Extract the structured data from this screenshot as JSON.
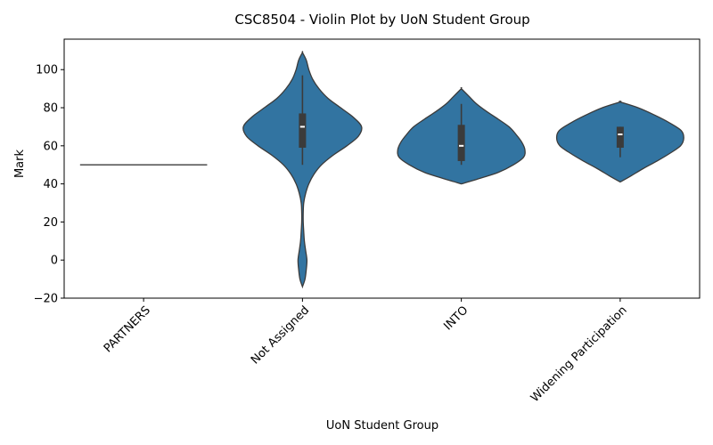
{
  "chart_data": {
    "type": "violin",
    "title": "CSC8504 - Violin Plot by UoN Student Group",
    "xlabel": "UoN Student Group",
    "ylabel": "Mark",
    "ylim": [
      -20,
      116
    ],
    "yticks": [
      -20,
      0,
      20,
      40,
      60,
      80,
      100
    ],
    "categories": [
      "PARTNERS",
      "Not Assigned",
      "INTO",
      "Widening Participation"
    ],
    "fill_color": "#3274a1",
    "line_color": "#3b3b3b",
    "groups": [
      {
        "name": "PARTNERS",
        "single_value": 50
      },
      {
        "name": "Not Assigned",
        "density": [
          [
            -14,
            0.0
          ],
          [
            -10,
            0.04
          ],
          [
            -5,
            0.06
          ],
          [
            0,
            0.07
          ],
          [
            5,
            0.05
          ],
          [
            10,
            0.03
          ],
          [
            15,
            0.02
          ],
          [
            20,
            0.012
          ],
          [
            25,
            0.012
          ],
          [
            30,
            0.02
          ],
          [
            35,
            0.05
          ],
          [
            40,
            0.1
          ],
          [
            45,
            0.18
          ],
          [
            50,
            0.3
          ],
          [
            55,
            0.48
          ],
          [
            60,
            0.7
          ],
          [
            65,
            0.88
          ],
          [
            70,
            0.93
          ],
          [
            75,
            0.8
          ],
          [
            80,
            0.6
          ],
          [
            85,
            0.4
          ],
          [
            90,
            0.26
          ],
          [
            95,
            0.16
          ],
          [
            100,
            0.1
          ],
          [
            105,
            0.06
          ],
          [
            109,
            0.0
          ]
        ],
        "box": {
          "q1": 59,
          "median": 70,
          "q3": 77,
          "whisker_low": 50,
          "whisker_high": 97
        }
      },
      {
        "name": "INTO",
        "density": [
          [
            40,
            0.0
          ],
          [
            43,
            0.3
          ],
          [
            46,
            0.58
          ],
          [
            50,
            0.82
          ],
          [
            54,
            0.98
          ],
          [
            58,
            1.0
          ],
          [
            62,
            0.95
          ],
          [
            66,
            0.86
          ],
          [
            70,
            0.75
          ],
          [
            74,
            0.58
          ],
          [
            78,
            0.4
          ],
          [
            82,
            0.24
          ],
          [
            86,
            0.12
          ],
          [
            90,
            0.0
          ]
        ],
        "box": {
          "q1": 52,
          "median": 60,
          "q3": 71,
          "whisker_low": 50,
          "whisker_high": 82
        }
      },
      {
        "name": "Widening Participation",
        "density": [
          [
            41,
            0.0
          ],
          [
            44,
            0.16
          ],
          [
            48,
            0.36
          ],
          [
            52,
            0.58
          ],
          [
            56,
            0.78
          ],
          [
            60,
            0.95
          ],
          [
            64,
            1.0
          ],
          [
            68,
            0.96
          ],
          [
            72,
            0.78
          ],
          [
            76,
            0.55
          ],
          [
            80,
            0.28
          ],
          [
            83,
            0.0
          ]
        ],
        "box": {
          "q1": 59,
          "median": 66,
          "q3": 70,
          "whisker_low": 54,
          "whisker_high": 70
        }
      }
    ]
  }
}
